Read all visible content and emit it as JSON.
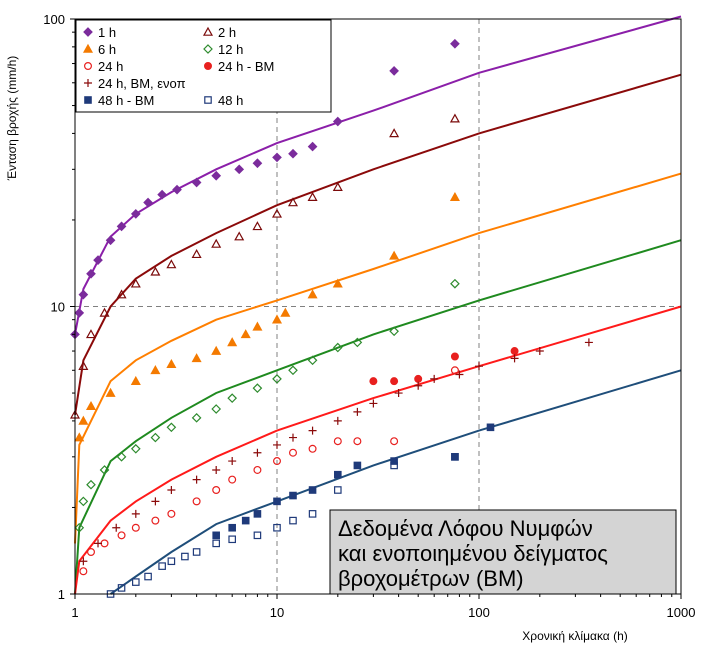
{
  "chart_data": {
    "type": "scatter",
    "xscale": "log",
    "yscale": "log",
    "xlim": [
      1,
      1000
    ],
    "ylim": [
      1,
      100
    ],
    "xlabel": "Χρονική κλίμακα (h)",
    "ylabel": "Ένταση βροχής (mm/h)",
    "x_ticks": [
      "1",
      "10",
      "100",
      "1000"
    ],
    "y_ticks": [
      "1",
      "10",
      "100"
    ],
    "grid": "major dashed",
    "legend_position": "top-left",
    "annotation": [
      "Δεδομένα Λόφου Νυμφών",
      "και ενοποιημένου δείγματος",
      "βροχομέτρων (ΒΜ)"
    ],
    "series": [
      {
        "name": "1 h",
        "marker": "diamond-filled",
        "color": "#7B2C9C",
        "fit_color": "#8B1FA9",
        "x": [
          1,
          1.05,
          1.1,
          1.2,
          1.3,
          1.5,
          1.7,
          2,
          2.3,
          2.7,
          3.2,
          4,
          5,
          6.5,
          8,
          10,
          12,
          15,
          20,
          38,
          76
        ],
        "y": [
          8,
          9.5,
          11,
          13,
          14.5,
          17,
          19,
          21,
          23,
          24.5,
          25.5,
          27,
          28.5,
          30,
          31.5,
          33,
          34,
          36,
          44,
          66,
          82
        ],
        "fit": [
          [
            1,
            8
          ],
          [
            1.1,
            11.5
          ],
          [
            1.5,
            17.5
          ],
          [
            2,
            21
          ],
          [
            3,
            25
          ],
          [
            5,
            30
          ],
          [
            10,
            37
          ],
          [
            30,
            48
          ],
          [
            100,
            65
          ],
          [
            1000,
            102
          ]
        ]
      },
      {
        "name": "2 h",
        "marker": "triangle-open",
        "color": "#7B0A0A",
        "fit_color": "#8B0A0A",
        "x": [
          1,
          1.1,
          1.2,
          1.4,
          1.7,
          2,
          2.5,
          3,
          4,
          5,
          6.5,
          8,
          10,
          12,
          15,
          20,
          38,
          76
        ],
        "y": [
          4.2,
          6.2,
          8,
          9.5,
          11,
          12,
          13.2,
          14,
          15.2,
          16.5,
          17.5,
          19,
          21,
          23,
          24,
          26,
          40,
          45
        ],
        "fit": [
          [
            1,
            4.2
          ],
          [
            1.1,
            6.5
          ],
          [
            1.5,
            10
          ],
          [
            2,
            12.5
          ],
          [
            3,
            15
          ],
          [
            5,
            18
          ],
          [
            10,
            22.5
          ],
          [
            30,
            30
          ],
          [
            100,
            40
          ],
          [
            1000,
            64
          ]
        ]
      },
      {
        "name": "6 h",
        "marker": "triangle-filled",
        "color": "#F47A00",
        "fit_color": "#FF7F00",
        "x": [
          1.05,
          1.1,
          1.2,
          1.5,
          2,
          2.5,
          3,
          4,
          5,
          6,
          7,
          8,
          10,
          11,
          15,
          20,
          38,
          76
        ],
        "y": [
          3.5,
          4,
          4.5,
          5,
          5.5,
          6,
          6.3,
          6.6,
          7,
          7.5,
          8,
          8.5,
          9,
          9.5,
          11,
          12,
          15,
          24
        ],
        "fit": [
          [
            1,
            1.5
          ],
          [
            1.05,
            3.3
          ],
          [
            1.5,
            5.5
          ],
          [
            2,
            6.5
          ],
          [
            3,
            7.6
          ],
          [
            5,
            9
          ],
          [
            10,
            10.5
          ],
          [
            30,
            13.5
          ],
          [
            100,
            18
          ],
          [
            1000,
            29
          ]
        ]
      },
      {
        "name": "12 h",
        "marker": "diamond-open",
        "color": "#2E8B2E",
        "fit_color": "#1F8A1F",
        "x": [
          1.05,
          1.1,
          1.2,
          1.4,
          1.7,
          2,
          2.5,
          3,
          4,
          5,
          6,
          8,
          10,
          12,
          15,
          20,
          25,
          38,
          76
        ],
        "y": [
          1.7,
          2.1,
          2.4,
          2.7,
          3,
          3.2,
          3.5,
          3.8,
          4.1,
          4.4,
          4.8,
          5.2,
          5.6,
          6,
          6.5,
          7.2,
          7.5,
          8.2,
          12
        ],
        "fit": [
          [
            1,
            1
          ],
          [
            1.05,
            1.7
          ],
          [
            1.5,
            2.9
          ],
          [
            2,
            3.4
          ],
          [
            3,
            4.1
          ],
          [
            5,
            5
          ],
          [
            10,
            6
          ],
          [
            30,
            8
          ],
          [
            100,
            10.5
          ],
          [
            1000,
            17
          ]
        ]
      },
      {
        "name": "24 h",
        "marker": "circle-open",
        "color": "#E8201F",
        "x": [
          1.1,
          1.2,
          1.4,
          1.7,
          2,
          2.5,
          3,
          4,
          5,
          6,
          8,
          10,
          12,
          15,
          20,
          25,
          38,
          76
        ],
        "y": [
          1.2,
          1.4,
          1.5,
          1.6,
          1.7,
          1.8,
          1.9,
          2.1,
          2.3,
          2.5,
          2.7,
          2.9,
          3.1,
          3.2,
          3.4,
          3.4,
          3.4,
          6
        ]
      },
      {
        "name": "24 h - BM",
        "marker": "circle-filled",
        "color": "#E8201F",
        "fit_color": "#FF1A1A",
        "x": [
          30,
          38,
          50,
          76,
          150
        ],
        "y": [
          5.5,
          5.5,
          5.6,
          6.7,
          7
        ],
        "fit": [
          [
            1,
            1
          ],
          [
            1.05,
            1.3
          ],
          [
            1.5,
            1.8
          ],
          [
            2,
            2.1
          ],
          [
            3,
            2.5
          ],
          [
            5,
            3
          ],
          [
            10,
            3.7
          ],
          [
            30,
            4.8
          ],
          [
            100,
            6.2
          ],
          [
            1000,
            10
          ]
        ]
      },
      {
        "name": "24 h, ΒΜ, ενοπ",
        "marker": "plus",
        "color": "#8B0A0A",
        "x": [
          1.1,
          1.3,
          1.6,
          2,
          2.5,
          3,
          4,
          5,
          6,
          8,
          10,
          12,
          15,
          20,
          25,
          30,
          40,
          50,
          60,
          80,
          100,
          150,
          200,
          350
        ],
        "y": [
          1.3,
          1.5,
          1.7,
          1.9,
          2.1,
          2.3,
          2.5,
          2.7,
          2.9,
          3.1,
          3.3,
          3.5,
          3.7,
          4,
          4.3,
          4.6,
          5,
          5.3,
          5.6,
          5.8,
          6.2,
          6.6,
          7,
          7.5
        ]
      },
      {
        "name": "48 h - BM",
        "marker": "square-filled",
        "color": "#1F3A7A",
        "x": [
          5,
          6,
          7,
          8,
          10,
          12,
          15,
          20,
          25,
          38,
          76,
          114
        ],
        "y": [
          1.6,
          1.7,
          1.8,
          1.9,
          2.1,
          2.2,
          2.3,
          2.6,
          2.8,
          2.9,
          3,
          3.8
        ]
      },
      {
        "name": "48 h",
        "marker": "square-open",
        "color": "#1F3A7A",
        "fit_color": "#1F4E7A",
        "x": [
          1.5,
          1.7,
          2,
          2.3,
          2.7,
          3,
          3.5,
          4,
          5,
          6,
          8,
          10,
          12,
          15,
          20,
          38,
          76
        ],
        "y": [
          1,
          1.05,
          1.1,
          1.15,
          1.25,
          1.3,
          1.35,
          1.4,
          1.5,
          1.55,
          1.6,
          1.7,
          1.8,
          1.9,
          2.3,
          2.8,
          3
        ],
        "fit": [
          [
            1.5,
            1
          ],
          [
            2,
            1.15
          ],
          [
            3,
            1.4
          ],
          [
            5,
            1.75
          ],
          [
            10,
            2.1
          ],
          [
            30,
            2.8
          ],
          [
            100,
            3.7
          ],
          [
            1000,
            6
          ]
        ]
      }
    ]
  }
}
